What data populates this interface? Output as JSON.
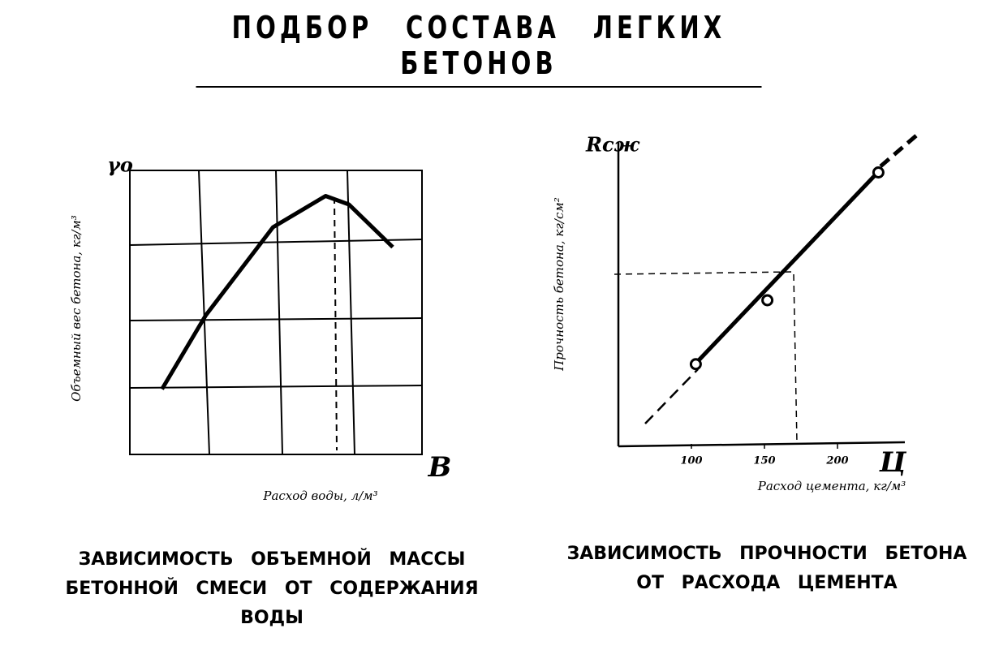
{
  "title": "ПОДБОР СОСТАВА ЛЕГКИХ БЕТОНОВ",
  "chart_data": [
    {
      "type": "line",
      "caption": "ЗАВИСИМОСТЬ ОБЪЕМНОЙ МАССЫ БЕТОННОЙ СМЕСИ ОТ СОДЕРЖАНИЯ ВОДЫ",
      "y_symbol": "γо",
      "x_symbol": "В",
      "y_label": "Объемный вес бетона, кг/м³",
      "x_label": "Расход воды, л/м³",
      "x": [
        1.1,
        2.6,
        4.9,
        6.7,
        7.5,
        9.0
      ],
      "values": [
        2.3,
        4.9,
        8.0,
        9.1,
        8.8,
        7.3
      ],
      "color": "#000000",
      "xlim": [
        0,
        10
      ],
      "ylim": [
        0,
        10
      ],
      "grid": true
    },
    {
      "type": "scatter",
      "caption": "ЗАВИСИМОСТЬ ПРОЧНОСТИ БЕТОНА ОТ РАСХОДА ЦЕМЕНТА",
      "y_symbol": "Rсж",
      "x_symbol": "Ц",
      "y_label": "Прочность бетона, кг/см²",
      "x_label": "Расход цемента, кг/м³",
      "x": [
        103,
        152,
        228
      ],
      "values": [
        2.7,
        4.8,
        9.0
      ],
      "color": "#000000",
      "xlim": [
        50,
        245
      ],
      "ylim": [
        0,
        10
      ],
      "xticks": [
        100,
        150,
        200
      ],
      "grid": false
    }
  ]
}
